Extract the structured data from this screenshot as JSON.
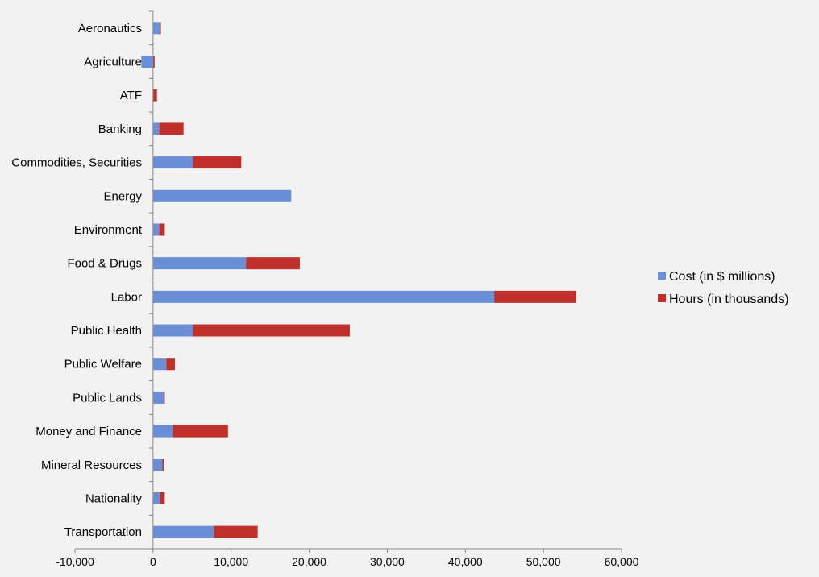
{
  "chart_data": {
    "type": "bar",
    "orientation": "horizontal",
    "stacked": true,
    "categories": [
      "Aeronautics",
      "Agriculture",
      "ATF",
      "Banking",
      "Commodities, Securities",
      "Energy",
      "Environment",
      "Food & Drugs",
      "Labor",
      "Public Health",
      "Public Welfare",
      "Public Lands",
      "Money and Finance",
      "Mineral Resources",
      "Nationality",
      "Transportation"
    ],
    "series": [
      {
        "name": "Cost (in $ millions)",
        "color": "#6a8fd6",
        "values": [
          900,
          -1500,
          0,
          800,
          5100,
          17700,
          800,
          11900,
          43700,
          5100,
          1700,
          1400,
          2500,
          1200,
          900,
          7800
        ]
      },
      {
        "name": "Hours (in thousands)",
        "color": "#c0302a",
        "values": [
          100,
          200,
          500,
          3100,
          6200,
          0,
          700,
          6900,
          10500,
          20100,
          1100,
          100,
          7100,
          200,
          600,
          5600
        ]
      }
    ],
    "xlim": [
      -10000,
      60000
    ],
    "xticks": [
      "-10,000",
      "0",
      "10,000",
      "20,000",
      "30,000",
      "40,000",
      "50,000",
      "60,000"
    ],
    "grid": false,
    "legend_position": "right"
  }
}
